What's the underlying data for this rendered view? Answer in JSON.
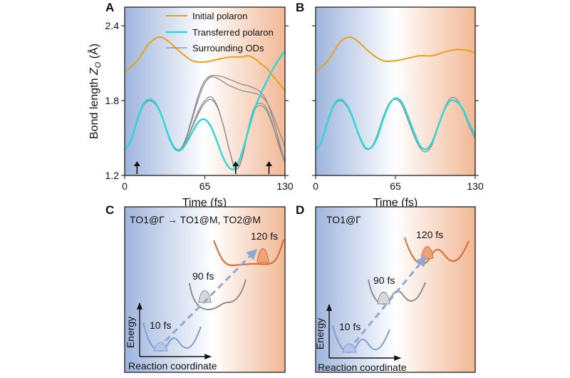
{
  "panel_labels": {
    "A": "A",
    "B": "B",
    "C": "C",
    "D": "D"
  },
  "colors": {
    "initial": "#E8A11C",
    "transferred": "#2AD8D8",
    "surrounding": "#8C8C8C",
    "blue_bg": "#8AA6D6",
    "orange_bg": "#F0B48E",
    "orange_curve": "#D9692A",
    "grey_curve": "#8E8E8E",
    "blue_curve": "#7F9FD2"
  },
  "chart_data": [
    {
      "panel": "A",
      "type": "line",
      "xlabel": "Time (fs)",
      "ylabel_main": "Bond length ",
      "ylabel_sym": "Z",
      "ylabel_sub": "O",
      "ylabel_unit": " (Å)",
      "xlim": [
        0,
        130
      ],
      "ylim": [
        1.2,
        2.55
      ],
      "xticks": [
        0,
        65,
        130
      ],
      "xtick_labels": [
        "0",
        "65",
        "130"
      ],
      "yticks": [
        1.2,
        1.8,
        2.4
      ],
      "ytick_labels": [
        "1.2",
        "1.8",
        "2.4"
      ],
      "legend": {
        "position": "top-right",
        "entries": [
          "Initial polaron",
          "Transferred polaron",
          "Surrounding ODs"
        ]
      },
      "arrows_x": [
        10,
        90,
        117
      ],
      "series": [
        {
          "name": "Initial polaron",
          "role": "initial",
          "x": [
            0,
            10,
            20,
            28,
            35,
            45,
            55,
            65,
            75,
            85,
            90,
            95,
            100,
            105,
            110,
            115,
            120,
            125,
            130
          ],
          "y": [
            2.03,
            2.12,
            2.26,
            2.31,
            2.28,
            2.19,
            2.12,
            2.11,
            2.13,
            2.15,
            2.15,
            2.15,
            2.16,
            2.14,
            2.1,
            2.06,
            2.0,
            1.94,
            1.88
          ]
        },
        {
          "name": "Transferred polaron",
          "role": "transferred",
          "x": [
            0,
            5,
            10,
            15,
            20,
            25,
            30,
            35,
            40,
            45,
            50,
            55,
            60,
            65,
            70,
            75,
            80,
            85,
            90,
            95,
            100,
            105,
            110,
            115,
            120,
            125,
            130
          ],
          "y": [
            1.4,
            1.48,
            1.64,
            1.77,
            1.81,
            1.78,
            1.68,
            1.53,
            1.42,
            1.4,
            1.46,
            1.55,
            1.63,
            1.65,
            1.59,
            1.47,
            1.34,
            1.26,
            1.26,
            1.38,
            1.55,
            1.72,
            1.85,
            1.95,
            2.05,
            2.13,
            2.2
          ]
        },
        {
          "name": "Surrounding ODs",
          "role": "surrounding",
          "x": [
            0,
            5,
            10,
            15,
            20,
            25,
            30,
            35,
            40,
            45,
            50,
            55,
            60,
            65,
            70,
            75,
            80,
            85,
            90,
            95,
            100,
            105,
            110,
            115,
            120,
            125,
            130
          ],
          "y": [
            1.4,
            1.48,
            1.63,
            1.76,
            1.8,
            1.77,
            1.68,
            1.54,
            1.43,
            1.41,
            1.48,
            1.59,
            1.7,
            1.78,
            1.81,
            1.75,
            1.6,
            1.4,
            1.25,
            1.33,
            1.55,
            1.72,
            1.76,
            1.72,
            1.6,
            1.45,
            1.32
          ]
        },
        {
          "name": "Surrounding ODs",
          "role": "surrounding",
          "x": [
            0,
            5,
            10,
            15,
            20,
            25,
            30,
            35,
            40,
            45,
            50,
            55,
            60,
            65,
            70,
            75,
            80,
            85,
            90,
            95,
            100,
            105,
            110,
            115,
            120,
            125,
            130
          ],
          "y": [
            1.4,
            1.48,
            1.63,
            1.76,
            1.8,
            1.77,
            1.68,
            1.54,
            1.43,
            1.41,
            1.48,
            1.6,
            1.72,
            1.8,
            1.83,
            1.76,
            1.6,
            1.4,
            1.25,
            1.34,
            1.57,
            1.74,
            1.78,
            1.74,
            1.61,
            1.44,
            1.3
          ]
        },
        {
          "name": "Surrounding ODs",
          "role": "surrounding",
          "x": [
            0,
            5,
            10,
            15,
            20,
            25,
            30,
            35,
            40,
            45,
            50,
            55,
            60,
            65,
            70,
            75,
            80,
            85,
            90,
            95,
            100,
            105,
            110,
            115,
            120,
            125,
            130
          ],
          "y": [
            1.4,
            1.48,
            1.63,
            1.76,
            1.8,
            1.77,
            1.68,
            1.54,
            1.43,
            1.41,
            1.5,
            1.66,
            1.82,
            1.94,
            1.99,
            1.98,
            1.95,
            1.92,
            1.9,
            1.88,
            1.87,
            1.86,
            1.84,
            1.79,
            1.69,
            1.56,
            1.43
          ]
        },
        {
          "name": "Surrounding ODs",
          "role": "surrounding",
          "x": [
            0,
            5,
            10,
            15,
            20,
            25,
            30,
            35,
            40,
            45,
            50,
            55,
            60,
            65,
            70,
            75,
            80,
            85,
            90,
            95,
            100,
            105,
            110,
            115,
            120,
            125,
            130
          ],
          "y": [
            1.4,
            1.48,
            1.63,
            1.76,
            1.8,
            1.77,
            1.68,
            1.54,
            1.43,
            1.41,
            1.51,
            1.68,
            1.85,
            1.96,
            2.0,
            2.0,
            1.99,
            1.97,
            1.95,
            1.93,
            1.92,
            1.9,
            1.87,
            1.8,
            1.66,
            1.48,
            1.3
          ]
        }
      ]
    },
    {
      "panel": "B",
      "type": "line",
      "xlabel": "Time (fs)",
      "xlim": [
        0,
        130
      ],
      "ylim": [
        1.2,
        2.55
      ],
      "xticks": [
        0,
        65,
        130
      ],
      "xtick_labels": [
        "0",
        "65",
        "130"
      ],
      "yticks": [
        1.2,
        1.8,
        2.4
      ],
      "series": [
        {
          "name": "Initial polaron",
          "role": "initial",
          "x": [
            0,
            10,
            20,
            28,
            35,
            45,
            55,
            65,
            75,
            85,
            95,
            105,
            115,
            125,
            130
          ],
          "y": [
            2.03,
            2.12,
            2.27,
            2.31,
            2.27,
            2.18,
            2.12,
            2.12,
            2.14,
            2.16,
            2.16,
            2.19,
            2.21,
            2.2,
            2.18
          ]
        },
        {
          "name": "Transferred polaron",
          "role": "transferred",
          "x": [
            0,
            5,
            10,
            15,
            20,
            25,
            30,
            35,
            40,
            45,
            50,
            55,
            60,
            65,
            70,
            75,
            80,
            85,
            90,
            95,
            100,
            105,
            110,
            115,
            120,
            125,
            130
          ],
          "y": [
            1.4,
            1.48,
            1.64,
            1.77,
            1.81,
            1.77,
            1.67,
            1.53,
            1.43,
            1.42,
            1.5,
            1.65,
            1.77,
            1.82,
            1.79,
            1.68,
            1.55,
            1.44,
            1.41,
            1.47,
            1.6,
            1.73,
            1.8,
            1.79,
            1.73,
            1.62,
            1.52
          ]
        },
        {
          "name": "Surrounding ODs",
          "role": "surrounding",
          "x": [
            0,
            5,
            10,
            15,
            20,
            25,
            30,
            35,
            40,
            45,
            50,
            55,
            60,
            65,
            70,
            75,
            80,
            85,
            90,
            95,
            100,
            105,
            110,
            115,
            120,
            125,
            130
          ],
          "y": [
            1.4,
            1.48,
            1.63,
            1.76,
            1.8,
            1.76,
            1.66,
            1.52,
            1.42,
            1.42,
            1.52,
            1.67,
            1.78,
            1.81,
            1.77,
            1.65,
            1.52,
            1.42,
            1.39,
            1.45,
            1.6,
            1.74,
            1.82,
            1.81,
            1.72,
            1.6,
            1.49
          ]
        }
      ]
    }
  ],
  "diagrams": {
    "C": {
      "title": "TO1@Γ → TO1@M, TO2@M",
      "energy_label": "Energy",
      "reaction_label": "Reaction coordinate",
      "labels": [
        "10 fs",
        "90 fs",
        "120 fs"
      ]
    },
    "D": {
      "title": "TO1@Γ",
      "energy_label": "Energy",
      "reaction_label": "Reaction coordinate",
      "labels": [
        "10 fs",
        "90 fs",
        "120 fs"
      ]
    }
  }
}
